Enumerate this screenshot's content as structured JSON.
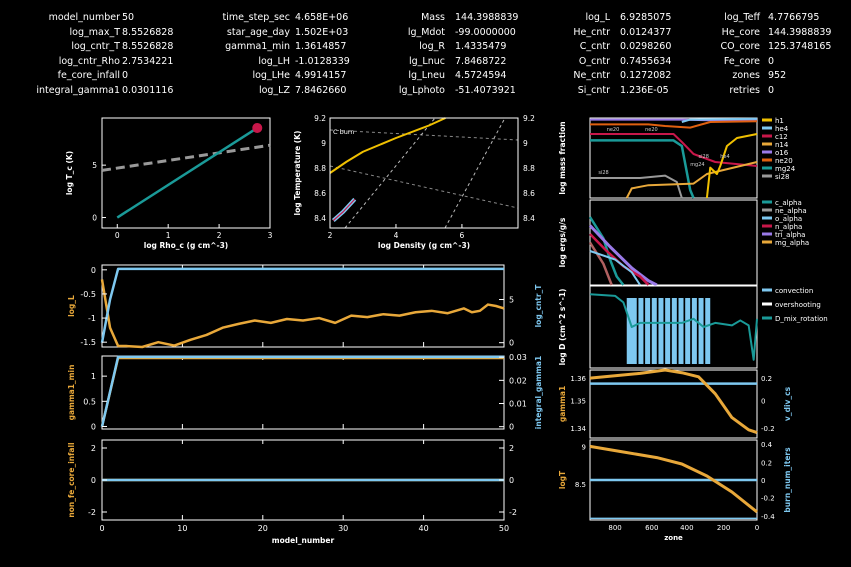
{
  "header": {
    "rows": [
      [
        "model_number",
        "50",
        "time_step_sec",
        "4.658E+06",
        "Mass",
        "144.3988839",
        "log_L",
        "6.9285075",
        "log_Teff",
        "4.7766795"
      ],
      [
        "log_max_T",
        "8.5526828",
        "star_age_day",
        "1.502E+03",
        "lg_Mdot",
        "-99.0000000",
        "He_cntr",
        "0.0124377",
        "He_core",
        "144.3988839"
      ],
      [
        "log_cntr_T",
        "8.5526828",
        "gamma1_min",
        "1.3614857",
        "log_R",
        "1.4335479",
        "C_cntr",
        "0.0298260",
        "CO_core",
        "125.3748165"
      ],
      [
        "log_cntr_Rho",
        "2.7534221",
        "log_LH",
        "-1.0128339",
        "lg_Lnuc",
        "7.8468722",
        "O_cntr",
        "0.7455634",
        "Fe_core",
        "0"
      ],
      [
        "fe_core_infall",
        "0",
        "log_LHe",
        "4.9914157",
        "lg_Lneu",
        "4.5724594",
        "Ne_cntr",
        "0.1272082",
        "zones",
        "952"
      ],
      [
        "integral_gamma1",
        "0.0301116",
        "log_LZ",
        "7.8462660",
        "lg_Lphoto",
        "-51.4073921",
        "Si_cntr",
        "1.236E-05",
        "retries",
        "0"
      ]
    ]
  },
  "colors": {
    "teal": "#1a9a98",
    "gold": "#e8a83a",
    "skyblue": "#7ec8f0",
    "crimson": "#c8174a",
    "gray": "#999999",
    "yellow": "#f0c000",
    "violet": "#9a7ae8"
  },
  "chart_data": [
    {
      "id": "tc_rhoc",
      "type": "line",
      "xlabel": "log Rho_c (g cm^-3)",
      "ylabel": "log T_c (K)",
      "xlim": [
        -0.3,
        3.0
      ],
      "ylim": [
        -1,
        9.5
      ],
      "xticks": [
        "0",
        "1",
        "2",
        "3"
      ],
      "yticks": [
        "0",
        "5"
      ],
      "series": [
        {
          "style": "teal",
          "x": [
            0,
            2.75
          ],
          "y": [
            0,
            8.55
          ]
        },
        {
          "style": "gray-dash",
          "x": [
            -0.3,
            3.0
          ],
          "y": [
            4.5,
            6.9
          ]
        }
      ],
      "marker": {
        "x": 2.75,
        "y": 8.55
      }
    },
    {
      "id": "trho_profile",
      "type": "line",
      "xlabel": "log Density (g cm^-3)",
      "ylabel": "log Temperature (K)",
      "xlim": [
        2,
        7.7
      ],
      "ylim": [
        8.32,
        9.2
      ],
      "xticks": [
        "2",
        "4",
        "6"
      ],
      "yticks_left": [
        "8.4",
        "8.6",
        "8.8",
        "9",
        "9.2"
      ],
      "yticks_right": [
        "8.4",
        "8.6",
        "8.8",
        "9",
        "9.2"
      ],
      "annotation": "C burn",
      "series": [
        {
          "style": "yellow",
          "x": [
            2.0,
            2.5,
            3.0,
            4.0,
            5.0,
            5.5
          ],
          "y": [
            8.76,
            8.85,
            8.93,
            9.04,
            9.14,
            9.2
          ]
        },
        {
          "style": "blue-crimson",
          "x": [
            2.1,
            2.4,
            2.75
          ],
          "y": [
            8.38,
            8.45,
            8.55
          ]
        }
      ]
    },
    {
      "id": "log_L_cntr_T",
      "type": "line",
      "ylabel_left": "log_L",
      "ylabel_right": "log_cntr_T",
      "xlim": [
        0,
        50
      ],
      "ylim_left": [
        -1.6,
        0.1
      ],
      "ylim_right": [
        -0.5,
        9
      ],
      "yticks_left": [
        "0",
        "-0.5",
        "-1",
        "-1.5"
      ],
      "yticks_right": [
        "5",
        "0"
      ],
      "series": [
        {
          "name": "log_L",
          "axis": "left",
          "style": "gold",
          "x": [
            0,
            1,
            2,
            3,
            5,
            7,
            9,
            11,
            13,
            15,
            17,
            19,
            21,
            23,
            25,
            27,
            29,
            31,
            33,
            35,
            37,
            39,
            41,
            43,
            45,
            46,
            47,
            48,
            49,
            50
          ],
          "y": [
            -0.2,
            -1.2,
            -1.58,
            -1.58,
            -1.6,
            -1.5,
            -1.57,
            -1.45,
            -1.35,
            -1.2,
            -1.12,
            -1.05,
            -1.1,
            -1.02,
            -1.05,
            -1.0,
            -1.1,
            -0.95,
            -0.98,
            -0.92,
            -0.95,
            -0.88,
            -0.85,
            -0.9,
            -0.8,
            -0.88,
            -0.85,
            -0.72,
            -0.75,
            -0.8
          ]
        },
        {
          "name": "log_cntr_T",
          "axis": "right",
          "style": "skyblue",
          "x": [
            0,
            1,
            2,
            50
          ],
          "y": [
            0,
            5,
            8.55,
            8.55
          ]
        }
      ]
    },
    {
      "id": "gamma1_min_integral",
      "type": "line",
      "ylabel_left": "gamma1_min",
      "ylabel_right": "integral_gamma1",
      "xlim": [
        0,
        50
      ],
      "ylim_left": [
        -0.05,
        1.4
      ],
      "ylim_right": [
        -0.001,
        0.0305
      ],
      "yticks_left": [
        "1",
        "0.5",
        "0"
      ],
      "yticks_right": [
        "0.03",
        "0.02",
        "0.01",
        "0"
      ],
      "series": [
        {
          "name": "gamma1_min",
          "axis": "left",
          "style": "gold",
          "x": [
            0,
            2,
            50
          ],
          "y": [
            0,
            1.36,
            1.36
          ]
        },
        {
          "name": "integral_gamma1",
          "axis": "right",
          "style": "skyblue",
          "x": [
            0,
            2,
            50
          ],
          "y": [
            0,
            0.0301,
            0.0301
          ]
        }
      ]
    },
    {
      "id": "fe_core_infall",
      "type": "line",
      "xlabel": "model_number",
      "ylabel_left": "non_fe_core_infall",
      "xlim": [
        0,
        50
      ],
      "ylim_left": [
        -2.5,
        2.5
      ],
      "ylim_right": [
        -2.5,
        2.5
      ],
      "xticks": [
        "0",
        "10",
        "20",
        "30",
        "40",
        "50"
      ],
      "yticks_left": [
        "2",
        "0",
        "-2"
      ],
      "yticks_right": [
        "2",
        "0",
        "-2"
      ],
      "series": [
        {
          "name": "non_fe_core_infall",
          "axis": "left",
          "style": "gold",
          "x": [
            0,
            50
          ],
          "y": [
            0,
            0
          ]
        },
        {
          "name": "fe_core_infall",
          "axis": "right",
          "style": "skyblue",
          "x": [
            0,
            50
          ],
          "y": [
            0,
            0
          ]
        }
      ]
    },
    {
      "id": "abundance",
      "type": "line",
      "ylabel": "log mass fraction",
      "legend": [
        "h1",
        "he4",
        "c12",
        "n14",
        "o16",
        "ne20",
        "mg24",
        "si28"
      ],
      "legend_colors": [
        "#f0c000",
        "#7ec8f0",
        "#c8174a",
        "#e8a83a",
        "#9a7ae8",
        "#e06010",
        "#1a9a98",
        "#999999"
      ],
      "legend_placement": "right",
      "inline_labels": [
        "ne20",
        "ne20",
        "he4",
        "si28",
        "si28",
        "mg24"
      ],
      "xlim": [
        952,
        0
      ],
      "ylim": [
        -7,
        0.2
      ]
    },
    {
      "id": "burn",
      "type": "line",
      "ylabel": "log ergs/g/s",
      "legend": [
        "c_alpha",
        "ne_alpha",
        "o_alpha",
        "n_alpha",
        "tri_alpha",
        "mg_alpha"
      ],
      "legend_colors": [
        "#1a9a98",
        "#999999",
        "#7ec8f0",
        "#c8174a",
        "#9a7ae8",
        "#e8a83a"
      ],
      "legend_placement": "right"
    },
    {
      "id": "mixing",
      "type": "line",
      "ylabel": "log D (cm^2 s^-1)",
      "legend": [
        "convection",
        "overshooting",
        "D_mix_rotation"
      ],
      "legend_colors": [
        "#7ec8f0",
        "#ffffff",
        "#1a9a98"
      ],
      "legend_placement": "right"
    },
    {
      "id": "gamma1_profile",
      "type": "line",
      "ylabel_left": "gamma1",
      "ylabel_right": "v_div_cs",
      "yticks_left": [
        "1.36",
        "1.35",
        "1.34"
      ],
      "yticks_right": [
        "0.2",
        "0",
        "-0.2"
      ]
    },
    {
      "id": "logT_profile",
      "type": "line",
      "ylabel_left": "logT",
      "ylabel_right": "burn_num_iters",
      "xlabel": "zone",
      "xticks": [
        "800",
        "600",
        "400",
        "200",
        "0"
      ],
      "yticks_left": [
        "9",
        "8.5"
      ],
      "yticks_right": [
        "0.4",
        "0.2",
        "0",
        "-0.2",
        "-0.4"
      ]
    }
  ]
}
